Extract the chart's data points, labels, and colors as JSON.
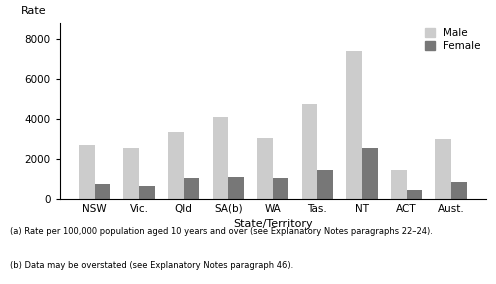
{
  "categories": [
    "NSW",
    "Vic.",
    "Qld",
    "SA(b)",
    "WA",
    "Tas.",
    "NT",
    "ACT",
    "Aust."
  ],
  "male_values": [
    2700,
    2550,
    3350,
    4100,
    3050,
    4750,
    7400,
    1450,
    3000
  ],
  "female_values": [
    750,
    650,
    1050,
    1100,
    1050,
    1450,
    2550,
    430,
    850
  ],
  "male_color": "#cccccc",
  "female_color": "#777777",
  "ylabel": "Rate",
  "xlabel": "State/Territory",
  "ylim": [
    0,
    8800
  ],
  "yticks": [
    0,
    2000,
    4000,
    6000,
    8000
  ],
  "legend_male": "Male",
  "legend_female": "Female",
  "footnote1": "(a) Rate per 100,000 population aged 10 years and over (see Explanatory Notes paragraphs 22–24).",
  "footnote2": "(b) Data may be overstated (see Explanatory Notes paragraph 46).",
  "bar_width": 0.35,
  "fig_width": 4.96,
  "fig_height": 2.84,
  "dpi": 100
}
